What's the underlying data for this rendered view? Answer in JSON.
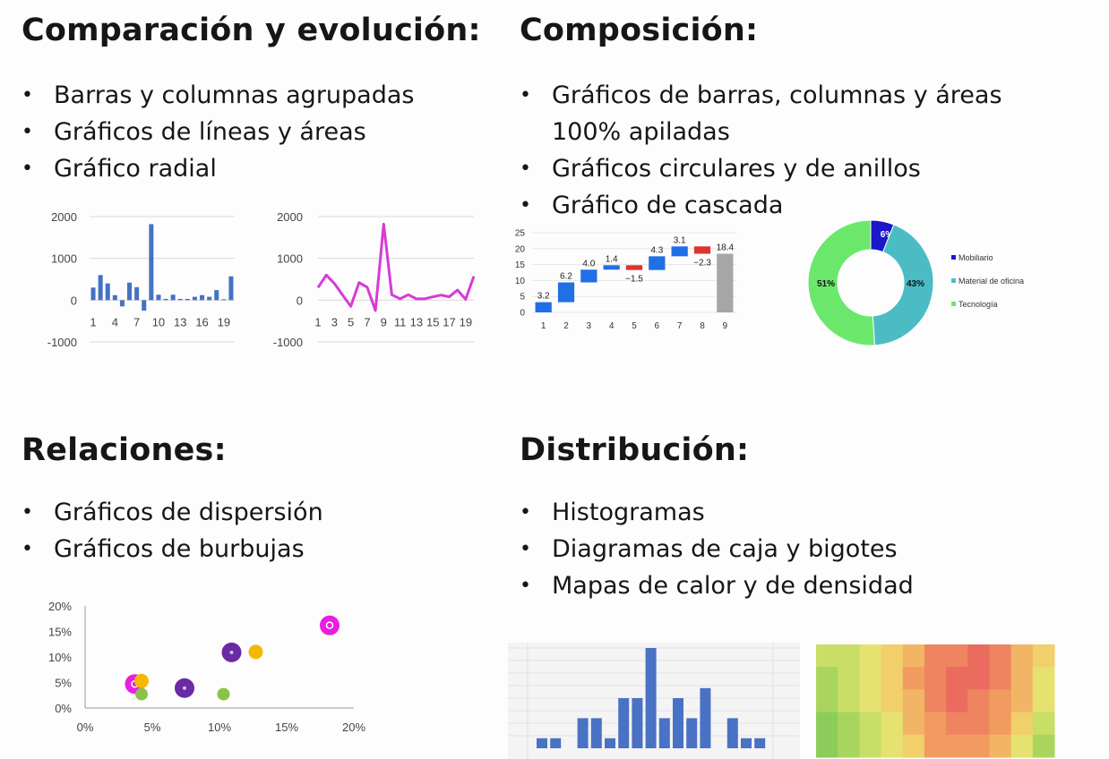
{
  "sections": {
    "comparacion": {
      "title": "Comparación y evolución:",
      "items": [
        "Barras y columnas agrupadas",
        "Gráficos de líneas y áreas",
        "Gráfico radial"
      ]
    },
    "composicion": {
      "title": "Composición:",
      "items": [
        "Gráficos de barras, columnas y áreas 100% apiladas",
        "Gráficos circulares y de anillos",
        "Gráfico de cascada"
      ]
    },
    "relaciones": {
      "title": "Relaciones:",
      "items": [
        "Gráficos de dispersión",
        "Gráficos de burbujas"
      ]
    },
    "distribucion": {
      "title": "Distribución:",
      "items": [
        "Histogramas",
        "Diagramas de caja y bigotes",
        "Mapas de calor y de densidad"
      ]
    }
  },
  "colors": {
    "bar_blue": "#4472c4",
    "line_magenta": "#d63bd6",
    "wf_blue": "#1f6fe6",
    "wf_red": "#e0332f",
    "wf_total": "#a6a6a6",
    "donut_dark": "#1a18c9",
    "donut_teal": "#4bbcc4",
    "donut_green": "#6be86b",
    "hist_blue": "#4a72c4"
  },
  "chart_data": [
    {
      "type": "bar",
      "categories": [
        1,
        2,
        3,
        4,
        5,
        6,
        7,
        8,
        9,
        10,
        11,
        12,
        13,
        14,
        15,
        16,
        17,
        18,
        19,
        20
      ],
      "values": [
        300,
        600,
        400,
        120,
        -150,
        420,
        310,
        -250,
        1820,
        130,
        30,
        130,
        30,
        30,
        80,
        120,
        80,
        240,
        20,
        570
      ],
      "xticks": [
        "1",
        "4",
        "7",
        "10",
        "13",
        "16",
        "19"
      ],
      "yticks": [
        "2000",
        "1000",
        "0",
        "-1000"
      ],
      "ylim": [
        -1000,
        2000
      ],
      "grid": true
    },
    {
      "type": "line",
      "x": [
        1,
        2,
        3,
        4,
        5,
        6,
        7,
        8,
        9,
        10,
        11,
        12,
        13,
        14,
        15,
        16,
        17,
        18,
        19,
        20
      ],
      "values": [
        300,
        600,
        400,
        120,
        -150,
        420,
        310,
        -250,
        1820,
        130,
        30,
        130,
        30,
        30,
        80,
        120,
        80,
        240,
        20,
        570
      ],
      "xticks": [
        "1",
        "3",
        "5",
        "7",
        "9",
        "11",
        "13",
        "15",
        "17",
        "19"
      ],
      "yticks": [
        "2000",
        "1000",
        "0",
        "-1000"
      ],
      "ylim": [
        -1000,
        2000
      ],
      "grid": true
    },
    {
      "type": "bar",
      "subtype": "waterfall",
      "categories": [
        "1",
        "2",
        "3",
        "4",
        "5",
        "6",
        "7",
        "8",
        "9"
      ],
      "values": [
        3.2,
        6.2,
        4.0,
        1.4,
        -1.5,
        4.3,
        3.1,
        -2.3,
        18.4
      ],
      "labels": [
        "3.2",
        "6.2",
        "4.0",
        "1.4",
        "−1.5",
        "4.3",
        "3.1",
        "−2.3",
        "18.4"
      ],
      "total_index": 8,
      "yticks": [
        "0",
        "5",
        "10",
        "15",
        "20",
        "25"
      ],
      "ylim": [
        0,
        25
      ]
    },
    {
      "type": "pie",
      "subtype": "donut",
      "labels": [
        "Mobiliario",
        "Material de oficina",
        "Tecnología"
      ],
      "values": [
        6,
        43,
        51
      ],
      "value_labels": [
        "6%",
        "43%",
        "51%"
      ],
      "legend": "right"
    },
    {
      "type": "scatter",
      "subtype": "bubble",
      "series": [
        {
          "points": [
            [
              3.7,
              4.7
            ],
            [
              18.2,
              16.2
            ]
          ],
          "color": "#e81ee0"
        },
        {
          "points": [
            [
              4.2,
              5.3
            ],
            [
              12.7,
              11.0
            ]
          ],
          "color": "#f5b800"
        },
        {
          "points": [
            [
              7.4,
              3.9
            ],
            [
              10.9,
              10.9
            ]
          ],
          "color": "#6a2aa3"
        },
        {
          "points": [
            [
              4.2,
              2.7
            ],
            [
              10.3,
              2.7
            ]
          ],
          "color": "#8bc34a"
        }
      ],
      "xticks": [
        "0%",
        "5%",
        "10%",
        "15%",
        "20%"
      ],
      "yticks": [
        "20%",
        "15%",
        "10%",
        "5%",
        "0%"
      ],
      "xlim": [
        0,
        20
      ],
      "ylim": [
        0,
        20
      ]
    },
    {
      "type": "bar",
      "subtype": "histogram",
      "values": [
        1,
        1,
        0,
        3,
        3,
        1,
        5,
        5,
        10,
        3,
        5,
        3,
        6,
        0,
        3,
        1,
        1
      ],
      "ylim": [
        0,
        10
      ]
    },
    {
      "type": "heatmap",
      "rows": 5,
      "cols": 11,
      "values": [
        [
          3,
          3,
          4,
          5,
          6,
          8,
          8,
          9,
          8,
          6,
          5
        ],
        [
          2,
          3,
          4,
          5,
          7,
          8,
          9,
          9,
          8,
          6,
          4
        ],
        [
          2,
          3,
          4,
          5,
          6,
          8,
          9,
          8,
          7,
          6,
          4
        ],
        [
          1,
          2,
          3,
          4,
          6,
          7,
          8,
          8,
          7,
          5,
          3
        ],
        [
          1,
          2,
          3,
          4,
          5,
          7,
          7,
          7,
          6,
          4,
          2
        ]
      ]
    }
  ]
}
